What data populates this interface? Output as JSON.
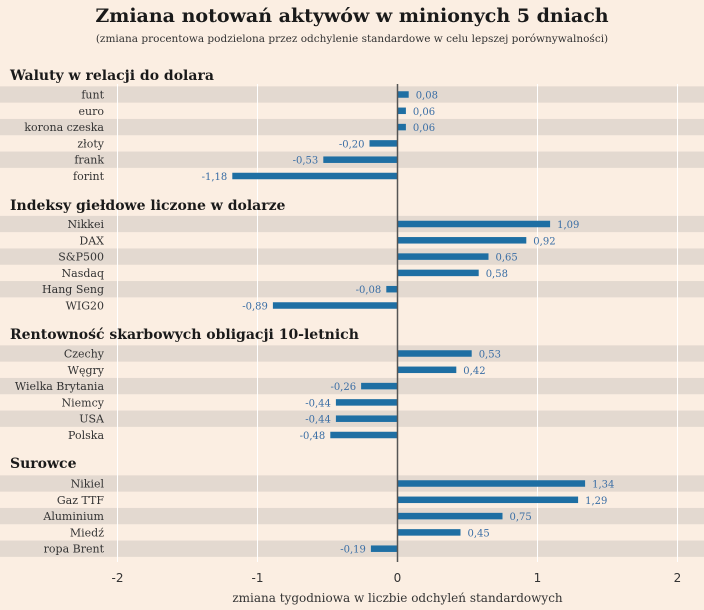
{
  "chart_data": {
    "type": "bar",
    "orientation": "horizontal",
    "title": "Zmiana notowań aktywów w minionych 5 dniach",
    "subtitle": "(zmiana procentowa podzielona przez odchylenie standardowe w celu lepszej porównywalności)",
    "xlabel": "zmiana tygodniowa w liczbie odchyleń standardowych",
    "xlim": [
      -2,
      2
    ],
    "x_ticks": [
      "-2",
      "-1",
      "0",
      "1",
      "2"
    ],
    "grid": true,
    "colors": {
      "bar": "#1f6fa3",
      "value_label": "#3a6ea5",
      "background": "#fbeee2",
      "row_band": "#e3d9d0",
      "zero_line": "#555555",
      "grid": "#ffffff"
    },
    "groups": [
      {
        "title": "Waluty w relacji do dolara",
        "categories": [
          "funt",
          "euro",
          "korona czeska",
          "złoty",
          "frank",
          "forint"
        ],
        "values": [
          0.08,
          0.06,
          0.06,
          -0.2,
          -0.53,
          -1.18
        ],
        "labels": [
          "0,08",
          "0,06",
          "0,06",
          "-0,20",
          "-0,53",
          "-1,18"
        ]
      },
      {
        "title": "Indeksy giełdowe liczone w dolarze",
        "categories": [
          "Nikkei",
          "DAX",
          "S&P500",
          "Nasdaq",
          "Hang Seng",
          "WIG20"
        ],
        "values": [
          1.09,
          0.92,
          0.65,
          0.58,
          -0.08,
          -0.89
        ],
        "labels": [
          "1,09",
          "0,92",
          "0,65",
          "0,58",
          "-0,08",
          "-0,89"
        ]
      },
      {
        "title": "Rentowność skarbowych obligacji 10-letnich",
        "categories": [
          "Czechy",
          "Węgry",
          "Wielka Brytania",
          "Niemcy",
          "USA",
          "Polska"
        ],
        "values": [
          0.53,
          0.42,
          -0.26,
          -0.44,
          -0.44,
          -0.48
        ],
        "labels": [
          "0,53",
          "0,42",
          "-0,26",
          "-0,44",
          "-0,44",
          "-0,48"
        ]
      },
      {
        "title": "Surowce",
        "categories": [
          "Nikiel",
          "Gaz TTF",
          "Aluminium",
          "Miedź",
          "ropa Brent"
        ],
        "values": [
          1.34,
          1.29,
          0.75,
          0.45,
          -0.19
        ],
        "labels": [
          "1,34",
          "1,29",
          "0,75",
          "0,45",
          "-0,19"
        ]
      }
    ]
  }
}
